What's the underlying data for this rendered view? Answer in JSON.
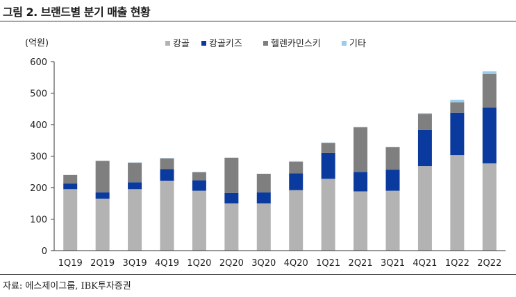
{
  "header": {
    "title": "그림 2. 브랜드별 분기 매출 현황"
  },
  "source": "자료: 에스제이그룹, IBK투자증권",
  "chart_data": {
    "type": "bar",
    "stacked": true,
    "title": "그림 2. 브랜드별 분기 매출 현황",
    "ylabel": "(억원)",
    "xlabel": "",
    "ylim": [
      0,
      600
    ],
    "yticks": [
      0,
      100,
      200,
      300,
      400,
      500,
      600
    ],
    "legend_position": "top",
    "categories": [
      "1Q19",
      "2Q19",
      "3Q19",
      "4Q19",
      "1Q20",
      "2Q20",
      "3Q20",
      "4Q20",
      "1Q21",
      "2Q21",
      "3Q21",
      "4Q21",
      "1Q22",
      "2Q22"
    ],
    "series": [
      {
        "name": "캉골",
        "color": "#b3b3b3",
        "values": [
          195,
          165,
          195,
          222,
          190,
          150,
          150,
          192,
          228,
          188,
          190,
          268,
          303,
          277
        ]
      },
      {
        "name": "캉골키즈",
        "color": "#0b3a9e",
        "values": [
          18,
          20,
          22,
          37,
          33,
          33,
          35,
          53,
          82,
          62,
          67,
          115,
          135,
          177
        ]
      },
      {
        "name": "헬렌카민스키",
        "color": "#7f7f7f",
        "values": [
          27,
          100,
          62,
          34,
          26,
          112,
          59,
          37,
          32,
          142,
          72,
          50,
          33,
          107
        ]
      },
      {
        "name": "기타",
        "color": "#99ccee",
        "values": [
          0,
          0,
          1,
          1,
          1,
          0,
          0,
          2,
          1,
          0,
          0,
          4,
          8,
          8
        ]
      }
    ]
  }
}
